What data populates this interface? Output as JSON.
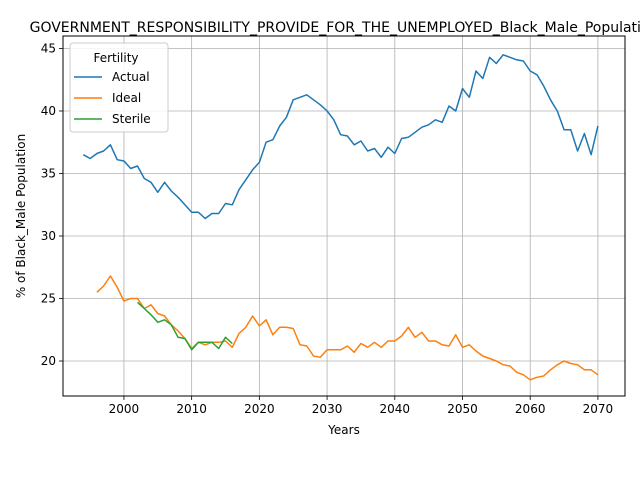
{
  "chart_data": {
    "type": "line",
    "title": "GOVERNMENT_RESPONSIBILITY_PROVIDE_FOR_THE_UNEMPLOYED_Black_Male_Population",
    "xlabel": "Years",
    "ylabel": "% of Black_Male Population",
    "xlim": [
      1991,
      2074
    ],
    "ylim": [
      17.2,
      46.0
    ],
    "xticks": [
      2000,
      2010,
      2020,
      2030,
      2040,
      2050,
      2060,
      2070
    ],
    "yticks": [
      20,
      25,
      30,
      35,
      40,
      45
    ],
    "grid": true,
    "legend": {
      "title": "Fertility",
      "placement": "top-left"
    },
    "series": [
      {
        "name": "Actual",
        "color": "#1f77b4",
        "x": [
          1994,
          1995,
          1996,
          1997,
          1998,
          1999,
          2000,
          2001,
          2002,
          2003,
          2004,
          2005,
          2006,
          2007,
          2008,
          2009,
          2010,
          2011,
          2012,
          2013,
          2014,
          2015,
          2016,
          2017,
          2018,
          2019,
          2020,
          2021,
          2022,
          2023,
          2024,
          2025,
          2026,
          2027,
          2028,
          2029,
          2030,
          2031,
          2032,
          2033,
          2034,
          2035,
          2036,
          2037,
          2038,
          2039,
          2040,
          2041,
          2042,
          2043,
          2044,
          2045,
          2046,
          2047,
          2048,
          2049,
          2050,
          2051,
          2052,
          2053,
          2054,
          2055,
          2056,
          2057,
          2058,
          2059,
          2060,
          2061,
          2062,
          2063,
          2064,
          2065,
          2066,
          2067,
          2068,
          2069,
          2070
        ],
        "values": [
          36.5,
          36.2,
          36.6,
          36.8,
          37.3,
          36.1,
          36.0,
          35.4,
          35.6,
          34.6,
          34.3,
          33.5,
          34.3,
          33.6,
          33.1,
          32.5,
          31.9,
          31.9,
          31.4,
          31.8,
          31.8,
          32.6,
          32.5,
          33.7,
          34.5,
          35.3,
          35.9,
          37.5,
          37.7,
          38.8,
          39.5,
          40.9,
          41.1,
          41.3,
          40.9,
          40.5,
          40.0,
          39.3,
          38.1,
          38.0,
          37.3,
          37.6,
          36.8,
          37.0,
          36.3,
          37.1,
          36.6,
          37.8,
          37.9,
          38.3,
          38.7,
          38.9,
          39.3,
          39.1,
          40.4,
          40.0,
          41.8,
          41.1,
          43.2,
          42.6,
          44.3,
          43.8,
          44.5,
          44.3,
          44.1,
          44.0,
          43.2,
          42.9,
          42.0,
          40.9,
          40.0,
          38.5,
          38.5,
          36.8,
          38.2,
          36.5,
          38.8
        ]
      },
      {
        "name": "Ideal",
        "color": "#ff7f0e",
        "x": [
          1996,
          1997,
          1998,
          1999,
          2000,
          2001,
          2002,
          2003,
          2004,
          2005,
          2006,
          2007,
          2008,
          2009,
          2010,
          2011,
          2012,
          2013,
          2014,
          2015,
          2016,
          2017,
          2018,
          2019,
          2020,
          2021,
          2022,
          2023,
          2024,
          2025,
          2026,
          2027,
          2028,
          2029,
          2030,
          2031,
          2032,
          2033,
          2034,
          2035,
          2036,
          2037,
          2038,
          2039,
          2040,
          2041,
          2042,
          2043,
          2044,
          2045,
          2046,
          2047,
          2048,
          2049,
          2050,
          2051,
          2052,
          2053,
          2054,
          2055,
          2056,
          2057,
          2058,
          2059,
          2060,
          2061,
          2062,
          2063,
          2064,
          2065,
          2066,
          2067,
          2068,
          2069,
          2070
        ],
        "values": [
          25.5,
          26.0,
          26.8,
          25.9,
          24.8,
          25.0,
          25.0,
          24.2,
          24.5,
          23.8,
          23.6,
          22.9,
          22.4,
          21.8,
          21.0,
          21.5,
          21.3,
          21.5,
          21.5,
          21.6,
          21.1,
          22.2,
          22.7,
          23.6,
          22.8,
          23.3,
          22.1,
          22.7,
          22.7,
          22.6,
          21.3,
          21.2,
          20.4,
          20.3,
          20.9,
          20.9,
          20.9,
          21.2,
          20.7,
          21.4,
          21.1,
          21.5,
          21.1,
          21.6,
          21.6,
          22.0,
          22.7,
          21.9,
          22.3,
          21.6,
          21.6,
          21.3,
          21.2,
          22.1,
          21.1,
          21.3,
          20.8,
          20.4,
          20.2,
          20.0,
          19.7,
          19.6,
          19.1,
          18.9,
          18.5,
          18.7,
          18.8,
          19.3,
          19.7,
          20.0,
          19.8,
          19.7,
          19.3,
          19.3,
          18.9
        ]
      },
      {
        "name": "Sterile",
        "color": "#2ca02c",
        "x": [
          2002,
          2003,
          2004,
          2005,
          2006,
          2007,
          2008,
          2009,
          2010,
          2011,
          2012,
          2013,
          2014,
          2015,
          2016
        ],
        "values": [
          24.7,
          24.2,
          23.7,
          23.1,
          23.3,
          22.9,
          21.9,
          21.8,
          20.9,
          21.5,
          21.5,
          21.5,
          21.0,
          21.9,
          21.4
        ]
      }
    ]
  }
}
